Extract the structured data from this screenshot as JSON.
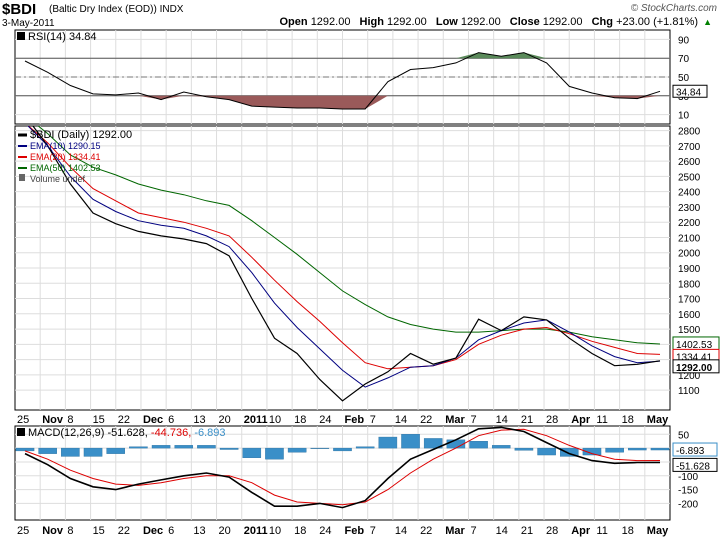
{
  "header": {
    "symbol": "$BDI",
    "name": "(Baltic Dry Index (EOD))",
    "exchange": "INDX",
    "date": "3-May-2011",
    "brand": "© StockCharts.com",
    "open_label": "Open",
    "open": "1292.00",
    "high_label": "High",
    "high": "1292.00",
    "low_label": "Low",
    "low": "1292.00",
    "close_label": "Close",
    "close": "1292.00",
    "chg_label": "Chg",
    "chg": "+23.00 (+1.81%)",
    "chg_arrow": "▲"
  },
  "colors": {
    "price": "#000000",
    "ema10": "#000080",
    "ema20": "#dd0000",
    "ema50": "#006600",
    "rsi_over": "#5a8a5a",
    "rsi_under": "#9a5a5a",
    "macd_hist": "#3a8fc8"
  },
  "chart_data": [
    {
      "type": "area",
      "title": "RSI(14) 34.84",
      "indicator": "RSI(14)",
      "current": "34.84",
      "ylim": [
        0,
        100
      ],
      "y_ticks": [
        "90",
        "70",
        "50",
        "30",
        "10"
      ],
      "levels": [
        70,
        30
      ],
      "x": [
        "25-Oct",
        "1-Nov",
        "8-Nov",
        "15-Nov",
        "22-Nov",
        "29-Nov",
        "6-Dec",
        "13-Dec",
        "20-Dec",
        "27-Dec",
        "3-Jan",
        "10-Jan",
        "17-Jan",
        "24-Jan",
        "31-Jan",
        "7-Feb",
        "14-Feb",
        "21-Feb",
        "28-Feb",
        "7-Mar",
        "14-Mar",
        "21-Mar",
        "28-Mar",
        "4-Apr",
        "11-Apr",
        "18-Apr",
        "25-Apr",
        "2-May",
        "3-May"
      ],
      "values": [
        67,
        55,
        41,
        32,
        31,
        33,
        26,
        34,
        29,
        26,
        19,
        18,
        17,
        17,
        16,
        16,
        45,
        58,
        60,
        65,
        76,
        72,
        76,
        65,
        40,
        33,
        28,
        27,
        34.84
      ]
    },
    {
      "type": "line",
      "title": "$BDI (Daily) 1292.00",
      "ylim": [
        970,
        2830
      ],
      "y_ticks": [
        "2800",
        "2700",
        "2600",
        "2500",
        "2400",
        "2300",
        "2200",
        "2100",
        "2000",
        "1900",
        "1800",
        "1700",
        "1600",
        "1500",
        "1400",
        "1300",
        "1200",
        "1100"
      ],
      "x_ticks": [
        "25",
        "Nov",
        "8",
        "15",
        "22",
        "Dec",
        "6",
        "13",
        "20",
        "2011",
        "10",
        "18",
        "24",
        "Feb",
        "7",
        "14",
        "22",
        "Mar",
        "7",
        "14",
        "21",
        "28",
        "Apr",
        "11",
        "18",
        "May"
      ],
      "x": [
        "25-Oct",
        "1-Nov",
        "8-Nov",
        "15-Nov",
        "22-Nov",
        "29-Nov",
        "6-Dec",
        "13-Dec",
        "20-Dec",
        "27-Dec",
        "3-Jan",
        "10-Jan",
        "17-Jan",
        "24-Jan",
        "31-Jan",
        "7-Feb",
        "14-Feb",
        "21-Feb",
        "28-Feb",
        "7-Mar",
        "14-Mar",
        "21-Mar",
        "28-Mar",
        "4-Apr",
        "11-Apr",
        "18-Apr",
        "25-Apr",
        "2-May",
        "3-May"
      ],
      "legend": [
        {
          "name": "$BDI (Daily)",
          "value": "1292.00"
        },
        {
          "name": "EMA(10)",
          "value": "1290.15"
        },
        {
          "name": "EMA(20)",
          "value": "1334.41"
        },
        {
          "name": "EMA(50)",
          "value": "1402.53"
        },
        {
          "name": "Volume undef",
          "value": ""
        }
      ],
      "series": [
        {
          "name": "$BDI (Daily)",
          "values": [
            2900,
            2700,
            2450,
            2260,
            2190,
            2140,
            2110,
            2090,
            2060,
            1980,
            1700,
            1440,
            1340,
            1170,
            1030,
            1140,
            1220,
            1340,
            1270,
            1310,
            1565,
            1490,
            1580,
            1560,
            1440,
            1340,
            1260,
            1269,
            1292
          ]
        },
        {
          "name": "EMA(10)",
          "values": [
            2850,
            2700,
            2500,
            2350,
            2270,
            2210,
            2180,
            2160,
            2110,
            2040,
            1870,
            1670,
            1510,
            1370,
            1230,
            1120,
            1180,
            1250,
            1260,
            1310,
            1430,
            1490,
            1540,
            1560,
            1480,
            1390,
            1320,
            1280,
            1290.15
          ]
        },
        {
          "name": "EMA(20)",
          "values": [
            2850,
            2720,
            2560,
            2420,
            2340,
            2260,
            2230,
            2200,
            2160,
            2110,
            1970,
            1820,
            1680,
            1550,
            1410,
            1280,
            1240,
            1250,
            1260,
            1300,
            1400,
            1460,
            1500,
            1510,
            1470,
            1420,
            1380,
            1340,
            1334.41
          ]
        },
        {
          "name": "EMA(50)",
          "values": [
            2900,
            2780,
            2640,
            2560,
            2510,
            2450,
            2410,
            2380,
            2340,
            2310,
            2210,
            2100,
            1990,
            1870,
            1750,
            1660,
            1580,
            1530,
            1500,
            1480,
            1480,
            1490,
            1500,
            1500,
            1480,
            1450,
            1430,
            1410,
            1402.53
          ]
        }
      ],
      "current_labels": [
        "1402.53",
        "1334.41",
        "1292.00"
      ]
    },
    {
      "type": "line",
      "title": "MACD(12,26,9) -51.628, -44.736, -6.893",
      "indicator": "MACD(12,26,9)",
      "current": [
        "-51.628",
        "-44.736",
        "-6.893"
      ],
      "ylim": [
        -260,
        80
      ],
      "y_ticks": [
        "50",
        "0",
        "-50",
        "-100",
        "-150",
        "-200"
      ],
      "x_ticks": [
        "25",
        "Nov",
        "8",
        "15",
        "22",
        "Dec",
        "6",
        "13",
        "20",
        "2011",
        "10",
        "18",
        "24",
        "Feb",
        "7",
        "14",
        "22",
        "Mar",
        "7",
        "14",
        "21",
        "28",
        "Apr",
        "11",
        "18",
        "May"
      ],
      "x": [
        "25-Oct",
        "1-Nov",
        "8-Nov",
        "15-Nov",
        "22-Nov",
        "29-Nov",
        "6-Dec",
        "13-Dec",
        "20-Dec",
        "27-Dec",
        "3-Jan",
        "10-Jan",
        "17-Jan",
        "24-Jan",
        "31-Jan",
        "7-Feb",
        "14-Feb",
        "21-Feb",
        "28-Feb",
        "7-Mar",
        "14-Mar",
        "21-Mar",
        "28-Mar",
        "4-Apr",
        "11-Apr",
        "18-Apr",
        "25-Apr",
        "2-May",
        "3-May"
      ],
      "series": [
        {
          "name": "MACD",
          "values": [
            -20,
            -60,
            -110,
            -140,
            -150,
            -130,
            -115,
            -100,
            -90,
            -105,
            -160,
            -210,
            -210,
            -200,
            -215,
            -190,
            -110,
            -40,
            -5,
            30,
            70,
            75,
            60,
            20,
            -20,
            -45,
            -55,
            -52,
            -51.628
          ]
        },
        {
          "name": "Signal",
          "values": [
            -10,
            -40,
            -80,
            -110,
            -130,
            -135,
            -125,
            -110,
            -100,
            -100,
            -125,
            -170,
            -195,
            -200,
            -205,
            -195,
            -150,
            -90,
            -40,
            0,
            45,
            65,
            68,
            45,
            10,
            -20,
            -40,
            -45,
            -44.736
          ]
        }
      ],
      "histogram": [
        -10,
        -20,
        -30,
        -30,
        -20,
        5,
        10,
        10,
        10,
        -5,
        -35,
        -40,
        -15,
        0,
        -10,
        5,
        40,
        50,
        35,
        30,
        25,
        10,
        -8,
        -25,
        -30,
        -25,
        -15,
        -7,
        -6.893
      ],
      "current_labels": [
        "-6.893",
        "-51.628"
      ]
    }
  ]
}
